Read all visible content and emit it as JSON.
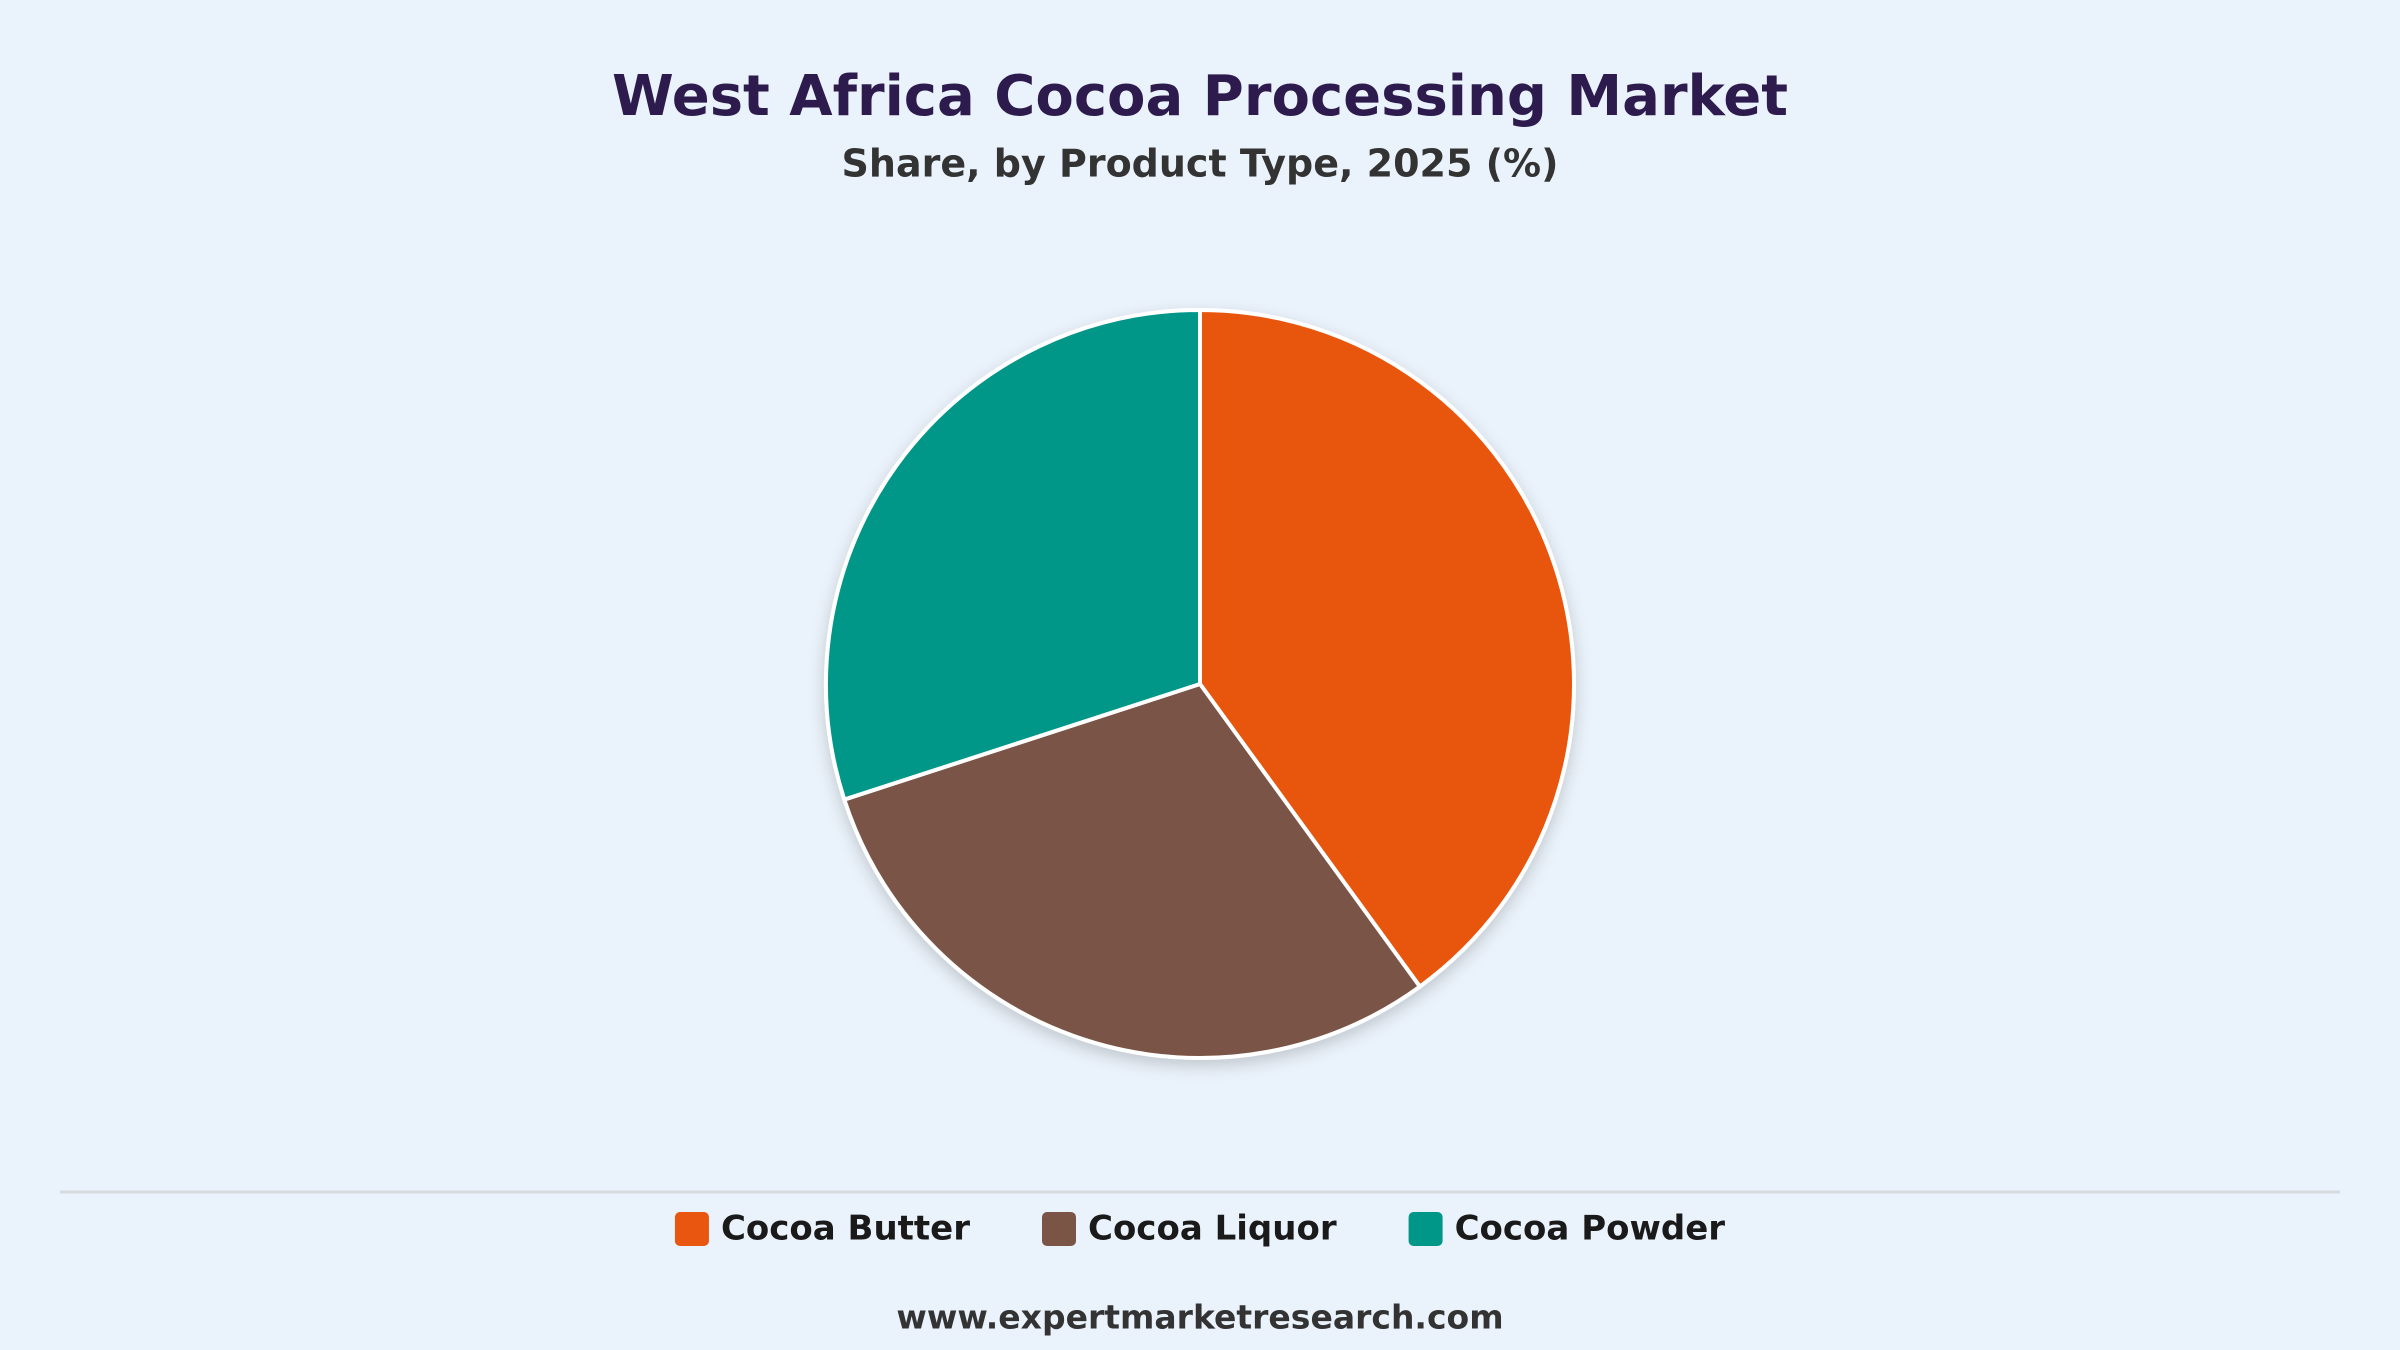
{
  "chart_data": {
    "type": "pie",
    "title": "West Africa Cocoa Processing Market",
    "subtitle": "Share, by Product Type, 2025 (%)",
    "categories": [
      "Cocoa Butter",
      "Cocoa Liquor",
      "Cocoa Powder"
    ],
    "values": [
      40,
      30,
      30
    ],
    "colors": [
      "#e8560f",
      "#7a5546",
      "#009688"
    ],
    "source": "www.expertmarketresearch.com"
  }
}
